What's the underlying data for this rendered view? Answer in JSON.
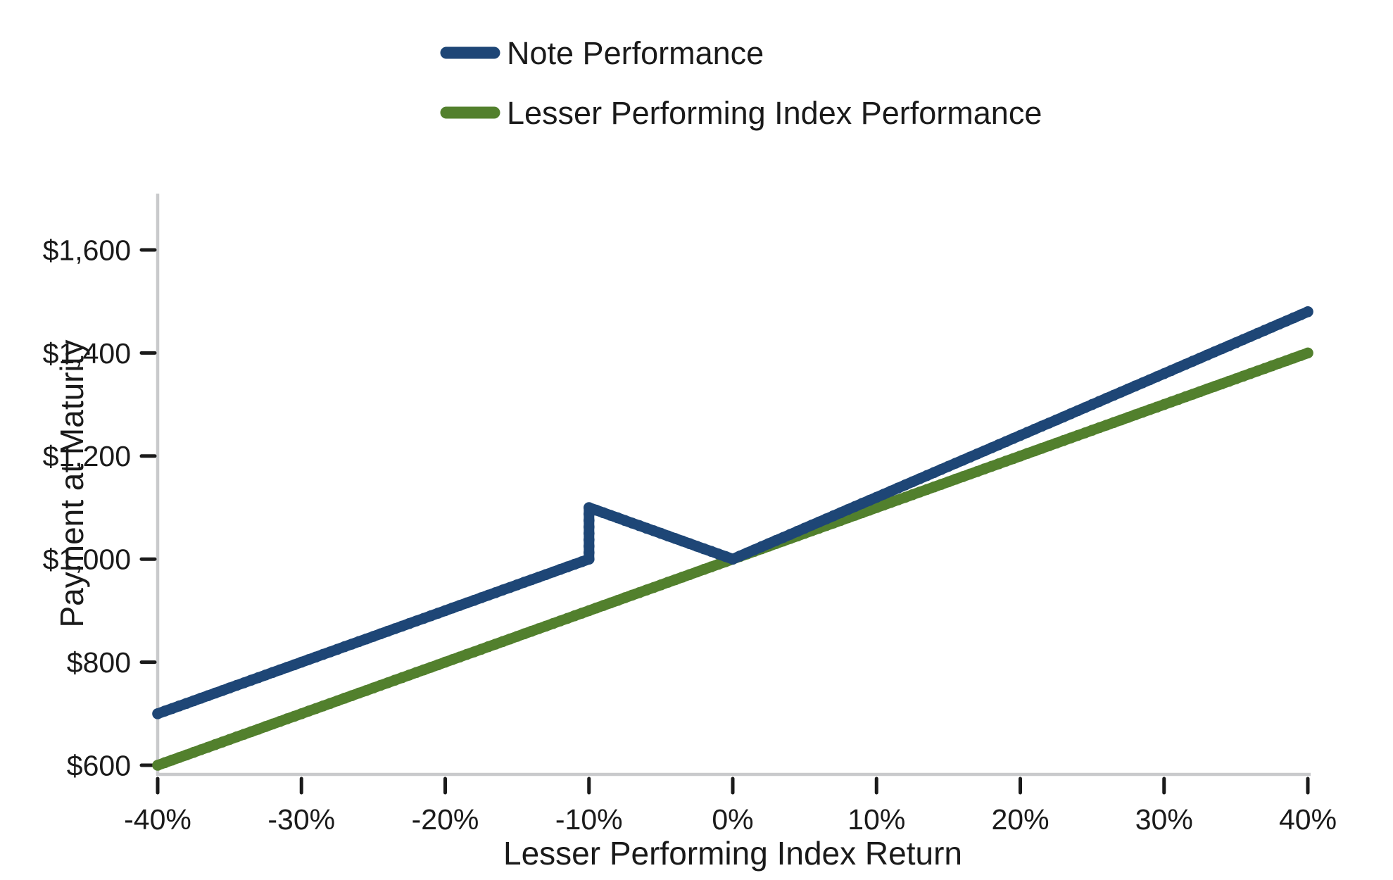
{
  "chart_data": {
    "type": "line",
    "title": "",
    "xlabel": "Lesser Performing Index Return",
    "ylabel": "Payment at Maturity",
    "xlim": [
      -40,
      40
    ],
    "ylim": [
      600,
      1600
    ],
    "grid": false,
    "legend_position": "top-center-above-plot",
    "line_style": "thick-dotted-markers",
    "x_tick_values": [
      -40,
      -30,
      -20,
      -10,
      0,
      10,
      20,
      30,
      40
    ],
    "x_tick_labels": [
      "-40%",
      "-30%",
      "-20%",
      "-10%",
      "0%",
      "10%",
      "20%",
      "30%",
      "40%"
    ],
    "y_tick_values": [
      600,
      800,
      1000,
      1200,
      1400,
      1600
    ],
    "y_tick_labels": [
      "$600",
      "$800",
      "$1,000",
      "$1,200",
      "$1,400",
      "$1,600"
    ],
    "series": [
      {
        "name": "Note Performance",
        "color": "#1e4676",
        "breakpoints": [
          [
            -40,
            700
          ],
          [
            -10,
            1000
          ],
          [
            -10,
            1100
          ],
          [
            0,
            1000
          ],
          [
            40,
            1480
          ]
        ],
        "sample_step_pct": 0.5,
        "z": 2
      },
      {
        "name": "Lesser Performing Index Performance",
        "color": "#52802d",
        "breakpoints": [
          [
            -40,
            600
          ],
          [
            40,
            1400
          ]
        ],
        "sample_step_pct": 0.5,
        "z": 1
      }
    ]
  }
}
